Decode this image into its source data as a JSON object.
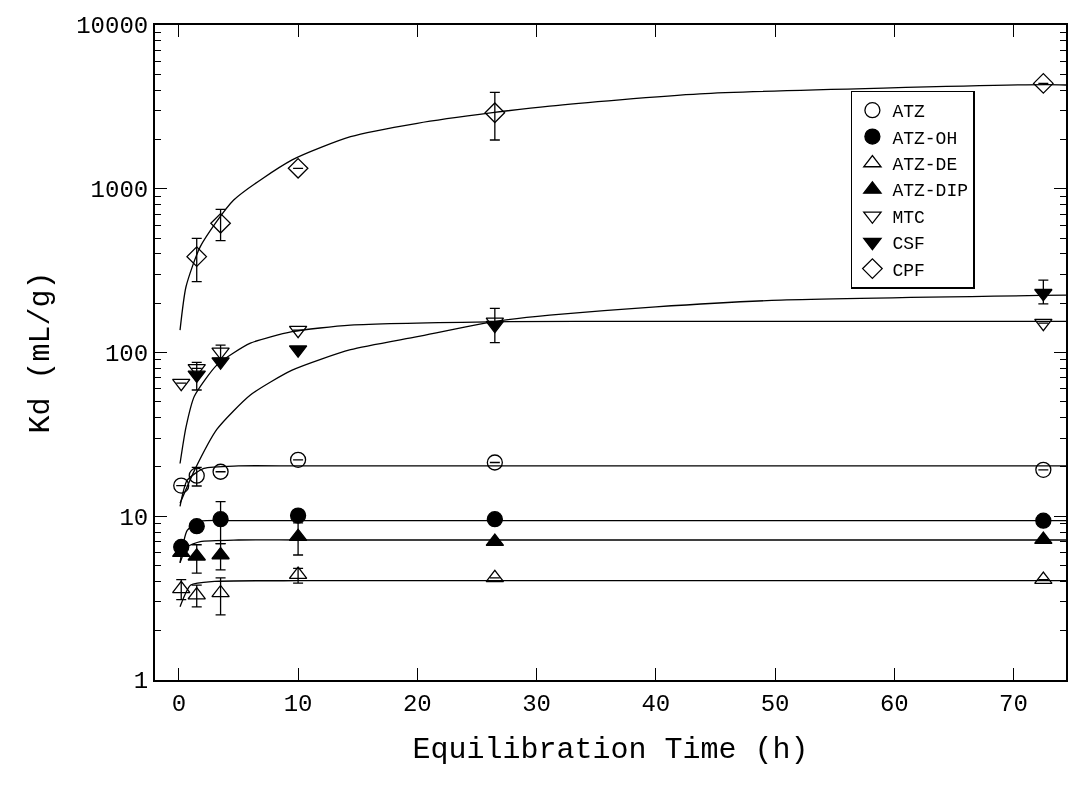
{
  "chart_data": {
    "type": "scatter",
    "xlabel": "Equilibration Time (h)",
    "ylabel": "Kd (mL/g)",
    "log": "y",
    "xlim": [
      -2,
      74.4
    ],
    "xticks": [
      0,
      10,
      20,
      30,
      40,
      50,
      60,
      70
    ],
    "ylim": [
      1,
      10000
    ],
    "yticks": [
      1,
      {
        "value": 2,
        "label": null
      },
      {
        "value": 3,
        "label": null
      },
      {
        "value": 4,
        "label": null
      },
      {
        "value": 5,
        "label": null
      },
      {
        "value": 6,
        "label": null
      },
      {
        "value": 7,
        "label": null
      },
      {
        "value": 8,
        "label": null
      },
      {
        "value": 9,
        "label": null
      },
      10,
      {
        "value": 20,
        "label": null
      },
      {
        "value": 30,
        "label": null
      },
      {
        "value": 40,
        "label": null
      },
      {
        "value": 50,
        "label": null
      },
      {
        "value": 60,
        "label": null
      },
      {
        "value": 70,
        "label": null
      },
      {
        "value": 80,
        "label": null
      },
      {
        "value": 90,
        "label": null
      },
      100,
      {
        "value": 200,
        "label": null
      },
      {
        "value": 300,
        "label": null
      },
      {
        "value": 400,
        "label": null
      },
      {
        "value": 500,
        "label": null
      },
      {
        "value": 600,
        "label": null
      },
      {
        "value": 700,
        "label": null
      },
      {
        "value": 800,
        "label": null
      },
      {
        "value": 900,
        "label": null
      },
      1000,
      {
        "value": 2000,
        "label": null
      },
      {
        "value": 3000,
        "label": null
      },
      {
        "value": 4000,
        "label": null
      },
      {
        "value": 5000,
        "label": null
      },
      {
        "value": 6000,
        "label": null
      },
      {
        "value": 7000,
        "label": null
      },
      {
        "value": 8000,
        "label": null
      },
      {
        "value": 9000,
        "label": null
      },
      10000
    ],
    "x": [
      0.2,
      1.5,
      3.5,
      10,
      26.5,
      72.5
    ],
    "grid": false,
    "legend": "top right",
    "series": [
      {
        "name": "ATZ",
        "marker": "circle-open",
        "color": "#000000",
        "values": [
          15.4,
          17.7,
          18.7,
          22.1,
          21.3,
          19.2
        ],
        "errors": [
          null,
          [
            15.3,
            19.9
          ],
          null,
          null,
          null,
          null
        ]
      },
      {
        "name": "ATZ-OH",
        "marker": "circle",
        "color": "#000000",
        "values": [
          6.5,
          8.7,
          9.6,
          10.1,
          9.6,
          9.4
        ],
        "errors": [
          null,
          null,
          [
            6.8,
            12.3
          ],
          null,
          null,
          null
        ]
      },
      {
        "name": "ATZ-DE",
        "marker": "triangle-open",
        "color": "#000000",
        "values": [
          3.6,
          3.3,
          3.4,
          4.4,
          4.2,
          4.1
        ],
        "errors": [
          [
            3.1,
            4.1
          ],
          [
            2.8,
            3.8
          ],
          [
            2.5,
            4.2
          ],
          [
            3.9,
            4.8
          ],
          null,
          null
        ]
      },
      {
        "name": "ATZ-DIP",
        "marker": "triangle",
        "color": "#000000",
        "values": [
          6.0,
          5.7,
          5.8,
          7.5,
          7.0,
          7.2
        ],
        "errors": [
          null,
          [
            4.5,
            6.7
          ],
          [
            4.7,
            6.8
          ],
          [
            5.8,
            9.1
          ],
          null,
          null
        ]
      },
      {
        "name": "MTC",
        "marker": "triangle-down-open",
        "color": "#000000",
        "values": [
          65,
          80,
          101,
          137,
          154,
          151
        ],
        "errors": [
          null,
          null,
          [
            92,
            111
          ],
          null,
          null,
          null
        ]
      },
      {
        "name": "CSF",
        "marker": "triangle-down",
        "color": "#000000",
        "values": [
          null,
          73,
          88,
          104,
          147,
          230
        ],
        "errors": [
          null,
          [
            59,
            87
          ],
          null,
          null,
          [
            115,
            186
          ],
          [
            198,
            277
          ]
        ]
      },
      {
        "name": "CPF",
        "marker": "diamond-open",
        "color": "#000000",
        "values": [
          null,
          385,
          615,
          1333,
          2913,
          4400
        ],
        "errors": [
          null,
          [
            271,
            498
          ],
          [
            482,
            749
          ],
          null,
          [
            1985,
            3880
          ],
          null
        ]
      },
      {
        "type": "line",
        "color": "#000000",
        "x": [
          0.1,
          0.7,
          2.1,
          5,
          10,
          30,
          74.4
        ],
        "values": [
          11.5,
          16.6,
          19.6,
          20.3,
          20.3,
          20.3,
          20.3
        ]
      },
      {
        "type": "line",
        "color": "#000000",
        "x": [
          0.1,
          0.7,
          1.8,
          5,
          10,
          30,
          74.4
        ],
        "values": [
          5.2,
          8.2,
          9.3,
          9.4,
          9.4,
          9.4,
          9.4
        ]
      },
      {
        "type": "line",
        "color": "#000000",
        "x": [
          0.1,
          0.7,
          1.8,
          5,
          10,
          30,
          74.4
        ],
        "values": [
          5.2,
          6.5,
          7.0,
          7.16,
          7.16,
          7.16,
          7.16
        ]
      },
      {
        "type": "line",
        "color": "#000000",
        "x": [
          0.1,
          1,
          3,
          10,
          30,
          74.4
        ],
        "values": [
          2.8,
          3.8,
          4.0,
          4.04,
          4.04,
          4.04
        ]
      },
      {
        "type": "line",
        "color": "#000000",
        "x": [
          0.1,
          0.6,
          1.3,
          3.2,
          6,
          9.5,
          14.4,
          26,
          40,
          74.4
        ],
        "values": [
          21,
          35,
          54,
          84,
          114,
          134,
          147,
          154,
          155,
          155
        ]
      },
      {
        "type": "line",
        "color": "#000000",
        "x": [
          0.1,
          1.3,
          3.2,
          6,
          9.5,
          14.4,
          20,
          26.3,
          31.1,
          40,
          50.5,
          74.4
        ],
        "values": [
          12,
          19,
          34,
          55,
          78,
          104,
          125,
          154,
          169,
          190,
          209,
          224
        ]
      },
      {
        "type": "line",
        "color": "#000000",
        "x": [
          0.1,
          0.6,
          1.8,
          4.6,
          9.5,
          14.4,
          20,
          26.3,
          31.1,
          43.7,
          72.7,
          74.4
        ],
        "values": [
          137,
          252,
          443,
          853,
          1500,
          2080,
          2510,
          2913,
          3200,
          3800,
          4330,
          4300
        ]
      }
    ]
  }
}
